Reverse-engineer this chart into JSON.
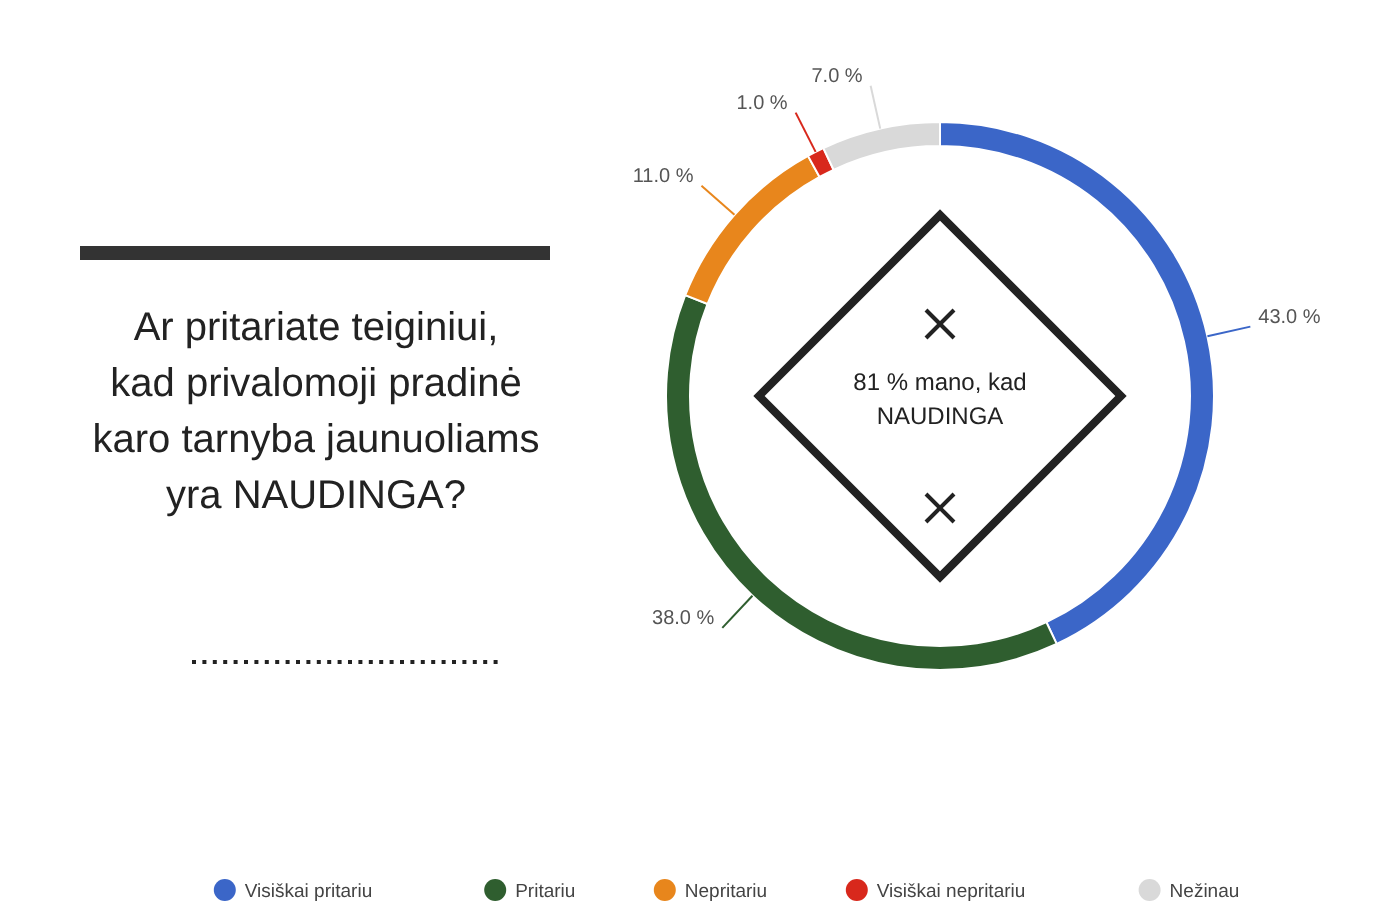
{
  "chart_data": {
    "type": "donut",
    "title": "Ar pritariate teiginiui, kad privalomoji pradinė karo tarnyba jaunuoliams yra NAUDINGA?",
    "categories": [
      "Visiškai pritariu",
      "Pritariu",
      "Nepritariu",
      "Visiškai nepritariu",
      "Nežinau"
    ],
    "values": [
      43,
      38,
      11,
      1,
      7
    ],
    "value_labels": [
      "43.0 %",
      "38.0 %",
      "11.0 %",
      "1.0 %",
      "7.0 %"
    ],
    "colors": [
      "#3b66c8",
      "#2f5e2f",
      "#e8861c",
      "#d8281c",
      "#d9d9d9"
    ],
    "annotations": [
      "81 % mano, kad NAUDINGA"
    ],
    "legend": "bottom"
  }
}
